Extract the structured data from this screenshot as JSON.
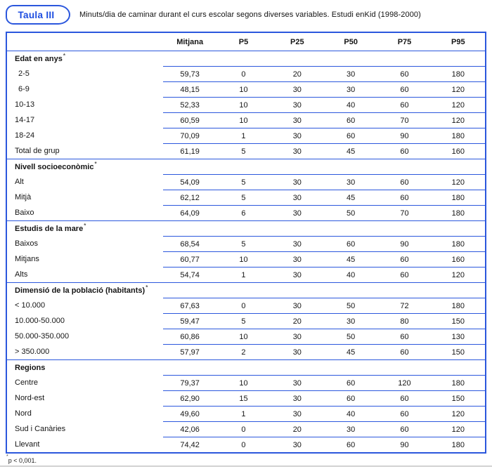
{
  "badge": {
    "label": "Taula III"
  },
  "title": "Minuts/dia de caminar durant el curs escolar segons diverses variables. Estudi enKid (1998-2000)",
  "columns": [
    "Mitjana",
    "P5",
    "P25",
    "P50",
    "P75",
    "P95"
  ],
  "sections": [
    {
      "header": "Edat en anys",
      "sup": "*",
      "rows": [
        {
          "label": "2-5",
          "values": [
            "59,73",
            "0",
            "20",
            "30",
            "60",
            "180"
          ]
        },
        {
          "label": "6-9",
          "values": [
            "48,15",
            "10",
            "30",
            "30",
            "60",
            "120"
          ]
        },
        {
          "label": "10-13",
          "values": [
            "52,33",
            "10",
            "30",
            "40",
            "60",
            "120"
          ]
        },
        {
          "label": "14-17",
          "values": [
            "60,59",
            "10",
            "30",
            "60",
            "70",
            "120"
          ]
        },
        {
          "label": "18-24",
          "values": [
            "70,09",
            "1",
            "30",
            "60",
            "90",
            "180"
          ]
        },
        {
          "label": "Total de grup",
          "values": [
            "61,19",
            "5",
            "30",
            "45",
            "60",
            "160"
          ]
        }
      ]
    },
    {
      "header": "Nivell socioeconòmic",
      "sup": "*",
      "rows": [
        {
          "label": "Alt",
          "values": [
            "54,09",
            "5",
            "30",
            "30",
            "60",
            "120"
          ]
        },
        {
          "label": "Mitjà",
          "values": [
            "62,12",
            "5",
            "30",
            "45",
            "60",
            "180"
          ]
        },
        {
          "label": "Baixo",
          "values": [
            "64,09",
            "6",
            "30",
            "50",
            "70",
            "180"
          ]
        }
      ]
    },
    {
      "header": "Estudis de la mare",
      "sup": "*",
      "rows": [
        {
          "label": "Baixos",
          "values": [
            "68,54",
            "5",
            "30",
            "60",
            "90",
            "180"
          ]
        },
        {
          "label": "Mitjans",
          "values": [
            "60,77",
            "10",
            "30",
            "45",
            "60",
            "160"
          ]
        },
        {
          "label": "Alts",
          "values": [
            "54,74",
            "1",
            "30",
            "40",
            "60",
            "120"
          ]
        }
      ]
    },
    {
      "header": "Dimensió de la població (habitants)",
      "sup": "*",
      "rows": [
        {
          "label": "< 10.000",
          "values": [
            "67,63",
            "0",
            "30",
            "50",
            "72",
            "180"
          ]
        },
        {
          "label": "10.000-50.000",
          "values": [
            "59,47",
            "5",
            "20",
            "30",
            "80",
            "150"
          ]
        },
        {
          "label": "50.000-350.000",
          "values": [
            "60,86",
            "10",
            "30",
            "50",
            "60",
            "130"
          ]
        },
        {
          "label": "> 350.000",
          "values": [
            "57,97",
            "2",
            "30",
            "45",
            "60",
            "150"
          ]
        }
      ]
    },
    {
      "header": "Regions",
      "sup": "",
      "rows": [
        {
          "label": "Centre",
          "values": [
            "79,37",
            "10",
            "30",
            "60",
            "120",
            "180"
          ]
        },
        {
          "label": "Nord-est",
          "values": [
            "62,90",
            "15",
            "30",
            "60",
            "60",
            "150"
          ]
        },
        {
          "label": "Nord",
          "values": [
            "49,60",
            "1",
            "30",
            "40",
            "60",
            "120"
          ]
        },
        {
          "label": "Sud i Canàries",
          "values": [
            "42,06",
            "0",
            "20",
            "30",
            "60",
            "120"
          ]
        },
        {
          "label": "Llevant",
          "values": [
            "74,42",
            "0",
            "30",
            "60",
            "90",
            "180"
          ]
        }
      ]
    }
  ],
  "footnote": {
    "sup": "*",
    "text": "p < 0,001."
  },
  "colors": {
    "accent_blue": "#2b57dd",
    "bottom_divider_gray": "#d2d2d2"
  }
}
